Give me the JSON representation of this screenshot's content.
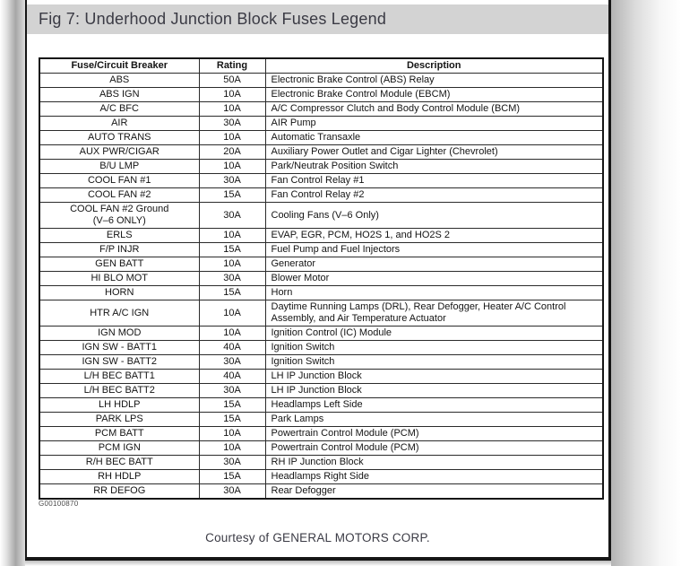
{
  "figure": {
    "title": "Fig 7: Underhood Junction Block Fuses Legend",
    "graphic_id": "G00100870",
    "courtesy": "Courtesy of GENERAL MOTORS CORP."
  },
  "table": {
    "columns": [
      "Fuse/Circuit Breaker",
      "Rating",
      "Description"
    ],
    "rows": [
      {
        "fuse": "ABS",
        "rating": "50A",
        "description": "Electronic Brake Control (ABS) Relay"
      },
      {
        "fuse": "ABS IGN",
        "rating": "10A",
        "description": "Electronic Brake Control Module (EBCM)"
      },
      {
        "fuse": "A/C BFC",
        "rating": "10A",
        "description": "A/C Compressor Clutch and Body Control Module (BCM)"
      },
      {
        "fuse": "AIR",
        "rating": "30A",
        "description": "AIR Pump"
      },
      {
        "fuse": "AUTO TRANS",
        "rating": "10A",
        "description": "Automatic Transaxle"
      },
      {
        "fuse": "AUX PWR/CIGAR",
        "rating": "20A",
        "description": "Auxiliary Power Outlet and Cigar Lighter (Chevrolet)"
      },
      {
        "fuse": "B/U LMP",
        "rating": "10A",
        "description": "Park/Neutrak Position Switch"
      },
      {
        "fuse": "COOL FAN #1",
        "rating": "30A",
        "description": "Fan Control Relay #1"
      },
      {
        "fuse": "COOL FAN #2",
        "rating": "15A",
        "description": "Fan Control Relay #2"
      },
      {
        "fuse": "COOL FAN #2 Ground\n(V–6 ONLY)",
        "rating": "30A",
        "description": "Cooling Fans (V–6 Only)"
      },
      {
        "fuse": "ERLS",
        "rating": "10A",
        "description": "EVAP, EGR, PCM, HO2S 1, and HO2S 2"
      },
      {
        "fuse": "F/P INJR",
        "rating": "15A",
        "description": "Fuel Pump and Fuel Injectors"
      },
      {
        "fuse": "GEN BATT",
        "rating": "10A",
        "description": "Generator"
      },
      {
        "fuse": "HI BLO MOT",
        "rating": "30A",
        "description": "Blower Motor"
      },
      {
        "fuse": "HORN",
        "rating": "15A",
        "description": "Horn"
      },
      {
        "fuse": "HTR A/C IGN",
        "rating": "10A",
        "description": "Daytime Running Lamps (DRL), Rear Defogger, Heater A/C Control Assembly, and Air Temperature Actuator"
      },
      {
        "fuse": "IGN MOD",
        "rating": "10A",
        "description": "Ignition Control (IC) Module"
      },
      {
        "fuse": "IGN SW - BATT1",
        "rating": "40A",
        "description": "Ignition Switch"
      },
      {
        "fuse": "IGN SW - BATT2",
        "rating": "30A",
        "description": "Ignition Switch"
      },
      {
        "fuse": "L/H BEC BATT1",
        "rating": "40A",
        "description": "LH IP Junction Block"
      },
      {
        "fuse": "L/H BEC BATT2",
        "rating": "30A",
        "description": "LH IP Junction Block"
      },
      {
        "fuse": "LH HDLP",
        "rating": "15A",
        "description": "Headlamps Left Side"
      },
      {
        "fuse": "PARK LPS",
        "rating": "15A",
        "description": "Park Lamps"
      },
      {
        "fuse": "PCM BATT",
        "rating": "10A",
        "description": "Powertrain Control Module (PCM)"
      },
      {
        "fuse": "PCM IGN",
        "rating": "10A",
        "description": "Powertrain Control Module (PCM)"
      },
      {
        "fuse": "R/H BEC BATT",
        "rating": "30A",
        "description": "RH IP Junction Block"
      },
      {
        "fuse": "RH HDLP",
        "rating": "15A",
        "description": "Headlamps Right Side"
      },
      {
        "fuse": "RR DEFOG",
        "rating": "30A",
        "description": "Rear Defogger"
      }
    ]
  },
  "colors": {
    "title_bar_bg": "#d3d3d3",
    "title_text": "#3a3a44",
    "table_border": "#161616",
    "table_text": "#141414",
    "footer_text": "#3b3b45"
  }
}
